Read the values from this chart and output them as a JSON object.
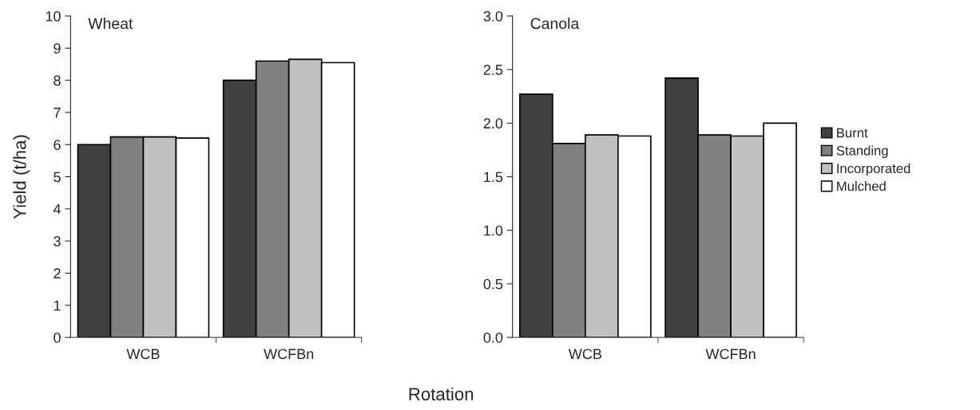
{
  "chart_data": [
    {
      "type": "bar",
      "title": "Wheat",
      "ylabel": "Yield (t/ha)",
      "xlabel": "Rotation",
      "categories": [
        "WCB",
        "WCFBn"
      ],
      "series": [
        {
          "color": "#404040",
          "values": [
            6.0,
            8.0
          ]
        },
        {
          "color": "#808080",
          "values": [
            6.24,
            8.6
          ]
        },
        {
          "color": "#c0c0c0",
          "values": [
            6.24,
            8.65
          ]
        },
        {
          "color": "#ffffff",
          "values": [
            6.2,
            8.55
          ]
        }
      ],
      "ylim": [
        0,
        10
      ],
      "yticks": [
        0,
        1,
        2,
        3,
        4,
        5,
        6,
        7,
        8,
        9,
        10
      ],
      "grid": false,
      "legend": false
    },
    {
      "type": "bar",
      "title": "Canola",
      "categories": [
        "WCB",
        "WCFBn"
      ],
      "series": [
        {
          "name": "Burnt",
          "color": "#404040",
          "values": [
            2.27,
            2.42
          ]
        },
        {
          "name": "Standing",
          "color": "#808080",
          "values": [
            1.81,
            1.89
          ]
        },
        {
          "name": "Incorporated",
          "color": "#c0c0c0",
          "values": [
            1.89,
            1.88
          ]
        },
        {
          "name": "Mulched",
          "color": "#ffffff",
          "values": [
            1.88,
            2.0
          ]
        }
      ],
      "ylim": [
        0,
        3.0
      ],
      "yticks": [
        {
          "value": 0,
          "label": "0.0"
        },
        {
          "value": 0.5,
          "label": "0.5"
        },
        {
          "value": 1.0,
          "label": "1.0"
        },
        {
          "value": 1.5,
          "label": "1.5"
        },
        {
          "value": 2.0,
          "label": "2.0"
        },
        {
          "value": 2.5,
          "label": "2.5"
        },
        {
          "value": 3.0,
          "label": "3.0"
        }
      ],
      "grid": false,
      "legend": "right"
    }
  ]
}
